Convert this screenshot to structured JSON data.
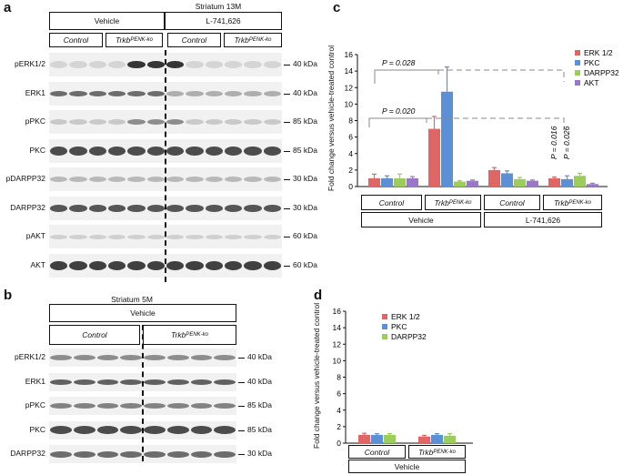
{
  "panels": {
    "a": {
      "label": "a",
      "title": "Striatum 13M",
      "treatments": [
        "Vehicle",
        "L-741,626"
      ],
      "groups": [
        {
          "name": "Control",
          "sup": ""
        },
        {
          "name": "Trkb",
          "sup": "PENK-ko"
        },
        {
          "name": "Control",
          "sup": ""
        },
        {
          "name": "Trkb",
          "sup": "PENK-ko"
        }
      ],
      "rows": [
        {
          "label": "pERK1/2",
          "kda": "40 kDa"
        },
        {
          "label": "ERK1",
          "kda": "40 kDa"
        },
        {
          "label": "pPKC",
          "kda": "85 kDa"
        },
        {
          "label": "PKC",
          "kda": "85 kDa"
        },
        {
          "label": "pDARPP32",
          "kda": "30 kDa"
        },
        {
          "label": "DARPP32",
          "kda": "30 kDa"
        },
        {
          "label": "pAKT",
          "kda": "60 kDa"
        },
        {
          "label": "AKT",
          "kda": "60 kDa"
        }
      ]
    },
    "b": {
      "label": "b",
      "title": "Striatum 5M",
      "treatments": [
        "Vehicle"
      ],
      "groups": [
        {
          "name": "Control",
          "sup": ""
        },
        {
          "name": "Trkb",
          "sup": "PENK-ko"
        }
      ],
      "rows": [
        {
          "label": "pERK1/2",
          "kda": "40 kDa"
        },
        {
          "label": "ERK1",
          "kda": "40 kDa"
        },
        {
          "label": "pPKC",
          "kda": "85 kDa"
        },
        {
          "label": "PKC",
          "kda": "85 kDa"
        },
        {
          "label": "DARPP32",
          "kda": "30 kDa"
        }
      ]
    },
    "c": {
      "label": "c",
      "ylabel": "Fold change versus vehicle-treated control",
      "pvalues": [
        "P = 0.028",
        "P = 0.020",
        "P = 0.016",
        "P = 0.026"
      ],
      "groups": [
        {
          "name": "Control",
          "sup": ""
        },
        {
          "name": "Trkb",
          "sup": "PENK-ko"
        },
        {
          "name": "Control",
          "sup": ""
        },
        {
          "name": "Trkb",
          "sup": "PENK-ko"
        }
      ],
      "treatments": [
        "Vehicle",
        "L-741,626"
      ]
    },
    "d": {
      "label": "d",
      "ylabel": "Fold change versus vehicle-treated control",
      "groups": [
        {
          "name": "Control",
          "sup": ""
        },
        {
          "name": "Trkb",
          "sup": "PENK-ko"
        }
      ],
      "treatments": [
        "Vehicle"
      ]
    }
  },
  "colors": {
    "ERK 1/2": "#e06666",
    "PKC": "#5b8fd6",
    "DARPP32": "#9ccc5a",
    "AKT": "#9b77c9"
  },
  "chart_data": [
    {
      "type": "bar",
      "panel": "c",
      "categories": [
        "Control (Vehicle)",
        "TrkbPENK-ko (Vehicle)",
        "Control (L-741,626)",
        "TrkbPENK-ko (L-741,626)"
      ],
      "series": [
        {
          "name": "ERK 1/2",
          "values": [
            1.0,
            7.0,
            2.0,
            1.0
          ],
          "errors": [
            0.5,
            1.5,
            0.3,
            0.15
          ]
        },
        {
          "name": "PKC",
          "values": [
            1.0,
            11.5,
            1.6,
            0.9
          ],
          "errors": [
            0.3,
            3.0,
            0.3,
            0.4
          ]
        },
        {
          "name": "DARPP32",
          "values": [
            1.0,
            0.6,
            0.9,
            1.3
          ],
          "errors": [
            0.5,
            0.1,
            0.2,
            0.3
          ]
        },
        {
          "name": "AKT",
          "values": [
            1.0,
            0.7,
            0.7,
            0.3
          ],
          "errors": [
            0.2,
            0.1,
            0.1,
            0.1
          ]
        }
      ],
      "ylim": [
        0,
        16
      ],
      "yticks": [
        0,
        2,
        4,
        6,
        8,
        10,
        12,
        14,
        16
      ],
      "ylabel": "Fold change versus vehicle-treated control",
      "legend": "top-right"
    },
    {
      "type": "bar",
      "panel": "d",
      "categories": [
        "Control (Vehicle)",
        "TrkbPENK-ko (Vehicle)"
      ],
      "series": [
        {
          "name": "ERK 1/2",
          "values": [
            1.0,
            0.8
          ],
          "errors": [
            0.2,
            0.15
          ]
        },
        {
          "name": "PKC",
          "values": [
            1.0,
            1.0
          ],
          "errors": [
            0.15,
            0.15
          ]
        },
        {
          "name": "DARPP32",
          "values": [
            1.0,
            0.9
          ],
          "errors": [
            0.15,
            0.25
          ]
        }
      ],
      "ylim": [
        0,
        16
      ],
      "yticks": [
        0,
        2,
        4,
        6,
        8,
        10,
        12,
        14,
        16
      ],
      "ylabel": "Fold change versus vehicle-treated control",
      "legend": "top-center"
    }
  ]
}
